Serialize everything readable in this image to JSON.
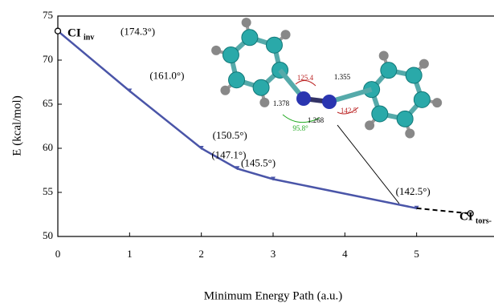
{
  "chart_data": {
    "type": "line",
    "xlabel": "Minimum Energy Path (a.u.)",
    "ylabel": "E (kcal/mol)",
    "xlim": [
      0,
      6
    ],
    "xticks": [
      0,
      1,
      2,
      3,
      4,
      5
    ],
    "ylim": [
      50,
      75
    ],
    "yticks": [
      50,
      55,
      60,
      65,
      70,
      75
    ],
    "series": [
      {
        "color": "#4a55a8",
        "dash": false,
        "x": [
          0,
          1,
          2,
          2.5,
          3,
          5
        ],
        "values": [
          73.3,
          66.5,
          60,
          57.7,
          56.5,
          53.2
        ],
        "point_labels": [
          "(174.3°)",
          "(161.0°)",
          "(150.5°)",
          "(147.1°)",
          "(145.5°)",
          "(142.5°)"
        ]
      },
      {
        "color": "#000000",
        "dash": true,
        "x": [
          5,
          5.75
        ],
        "values": [
          53.2,
          52.6
        ]
      }
    ],
    "annotations": [
      {
        "text": "CI",
        "sub": "inv"
      },
      {
        "text": "CI",
        "sub": "tors-"
      }
    ],
    "molecule_labels": [
      "125.4",
      "1.355",
      "1.378",
      "142.5",
      "1.268",
      "95.8°"
    ]
  }
}
